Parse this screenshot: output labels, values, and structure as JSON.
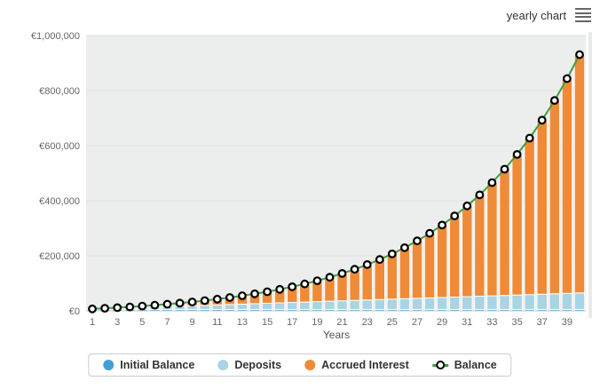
{
  "header": {
    "subtitle": "yearly chart",
    "menu_icon": "hamburger-menu"
  },
  "colors": {
    "initial_balance": "#459fd4",
    "deposits": "#a9d4e4",
    "accrued_interest": "#ef8b38",
    "balance_line": "#3f9e45",
    "marker_fill": "#ffffff",
    "marker_stroke": "#000000",
    "plot_background": "#eceded",
    "gridline": "#dfe1e1",
    "axis_label": "#666666"
  },
  "legend": {
    "items": [
      {
        "label": "Initial Balance",
        "swatch": "blue-dot"
      },
      {
        "label": "Deposits",
        "swatch": "lightblue-dot"
      },
      {
        "label": "Accrued Interest",
        "swatch": "orange-dot"
      },
      {
        "label": "Balance",
        "swatch": "line-circle-marker"
      }
    ]
  },
  "chart_data": {
    "type": "bar",
    "stacked": true,
    "title": "",
    "xlabel": "Years",
    "ylabel": "",
    "ylim": [
      0,
      1000000
    ],
    "ytick_step": 200000,
    "ytick_values": [
      0,
      200000,
      400000,
      600000,
      800000,
      1000000
    ],
    "ytick_labels": [
      "€0",
      "€200,000",
      "€400,000",
      "€600,000",
      "€800,000",
      "€1,000,000"
    ],
    "grid": "horizontal",
    "legend_position": "bottom",
    "x": [
      1,
      2,
      3,
      4,
      5,
      6,
      7,
      8,
      9,
      10,
      11,
      12,
      13,
      14,
      15,
      16,
      17,
      18,
      19,
      20,
      21,
      22,
      23,
      24,
      25,
      26,
      27,
      28,
      29,
      30,
      31,
      32,
      33,
      34,
      35,
      36,
      37,
      38,
      39,
      40
    ],
    "xtick_labels": [
      "1",
      "3",
      "5",
      "7",
      "9",
      "11",
      "13",
      "15",
      "17",
      "19",
      "21",
      "23",
      "25",
      "27",
      "29",
      "31",
      "33",
      "35",
      "37",
      "39"
    ],
    "series": [
      {
        "name": "Initial Balance",
        "type": "bar",
        "values": [
          5000,
          5000,
          5000,
          5000,
          5000,
          5000,
          5000,
          5000,
          5000,
          5000,
          5000,
          5000,
          5000,
          5000,
          5000,
          5000,
          5000,
          5000,
          5000,
          5000,
          5000,
          5000,
          5000,
          5000,
          5000,
          5000,
          5000,
          5000,
          5000,
          5000,
          5000,
          5000,
          5000,
          5000,
          5000,
          5000,
          5000,
          5000,
          5000,
          5000
        ]
      },
      {
        "name": "Deposits",
        "type": "bar",
        "values": [
          1500,
          3000,
          4500,
          6000,
          7500,
          9000,
          10500,
          12000,
          13500,
          15000,
          16500,
          18000,
          19500,
          21000,
          22500,
          24000,
          25500,
          27000,
          28500,
          30000,
          31500,
          33000,
          34500,
          36000,
          37500,
          39000,
          40500,
          42000,
          43500,
          45000,
          46500,
          48000,
          49500,
          51000,
          52500,
          54000,
          55500,
          57000,
          58500,
          60000
        ]
      },
      {
        "name": "Accrued Interest",
        "type": "bar",
        "values": [
          500,
          1200,
          2200,
          3300,
          4800,
          6500,
          8600,
          11100,
          13900,
          17200,
          21000,
          25300,
          30200,
          35800,
          42000,
          49100,
          57000,
          65900,
          75900,
          87000,
          99300,
          113100,
          128500,
          145500,
          164400,
          185400,
          208700,
          234500,
          263100,
          294700,
          329700,
          368400,
          411200,
          458500,
          510700,
          568300,
          632000,
          702300,
          779900,
          865500
        ]
      },
      {
        "name": "Balance",
        "type": "line",
        "values": [
          7000,
          9200,
          11700,
          14300,
          17300,
          20500,
          24100,
          28100,
          32400,
          37200,
          42500,
          48300,
          54700,
          61800,
          69500,
          78100,
          87500,
          97900,
          109400,
          122000,
          135800,
          151100,
          168000,
          186500,
          206900,
          229400,
          254200,
          281500,
          311600,
          344700,
          381200,
          421400,
          465700,
          514500,
          568200,
          627300,
          692500,
          764300,
          843400,
          930500
        ]
      }
    ]
  }
}
